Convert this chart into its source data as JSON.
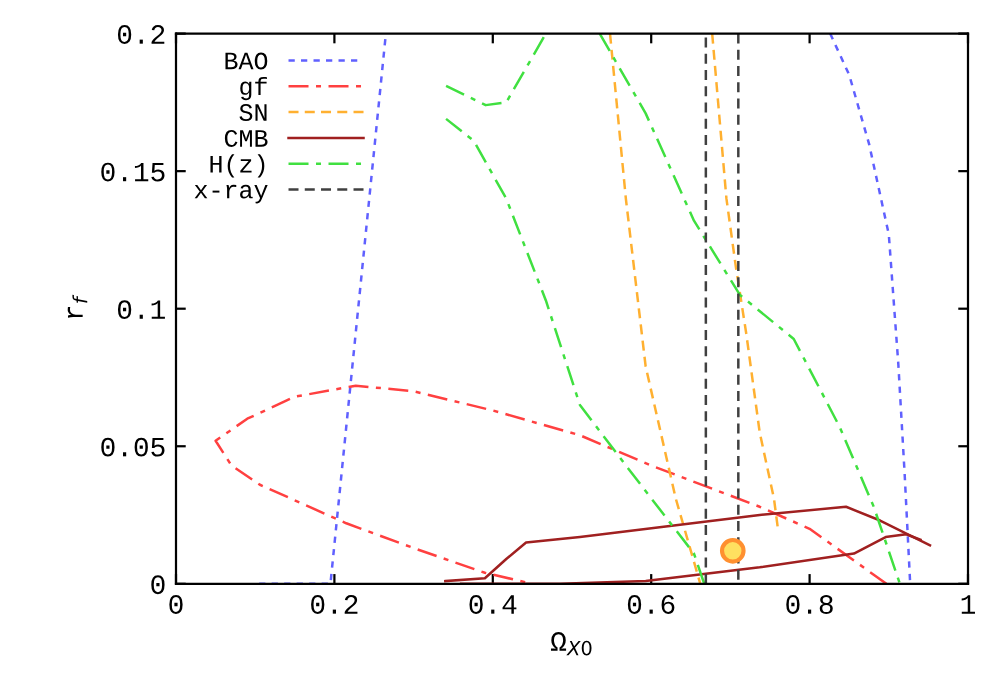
{
  "chart_data": {
    "type": "line",
    "xlabel": "Ω$_{X0}$",
    "ylabel": "r$_{f}$",
    "xlim": [
      0,
      1
    ],
    "ylim": [
      0,
      0.2
    ],
    "xticks": [
      0,
      0.2,
      0.4,
      0.6,
      0.8,
      1
    ],
    "yticks": [
      0,
      0.05,
      0.1,
      0.15,
      0.2
    ],
    "grid": false,
    "legend": "top left",
    "series": [
      {
        "name": "BAO",
        "color": "#6060ff",
        "line_style": "dotted",
        "x": [
          0.105,
          0.195,
          0.23,
          0.265
        ],
        "values": [
          0,
          0,
          0.1,
          0.2
        ]
      },
      {
        "color": "#6060ff",
        "line_style": "dotted",
        "x": [
          0.826,
          0.85,
          0.875,
          0.9,
          0.912,
          0.92,
          0.927
        ],
        "values": [
          0.2,
          0.185,
          0.16,
          0.127,
          0.08,
          0.04,
          0
        ]
      },
      {
        "name": "gf",
        "color": "#ff4040",
        "line_style": "dashdot",
        "x": [
          0.897,
          0.8,
          0.737,
          0.6,
          0.51,
          0.4,
          0.3,
          0.227,
          0.15,
          0.09,
          0.05,
          0.07,
          0.106,
          0.215,
          0.3,
          0.39,
          0.45
        ],
        "values": [
          0,
          0.02,
          0.028,
          0.043,
          0.054,
          0.063,
          0.07,
          0.072,
          0.068,
          0.06,
          0.052,
          0.043,
          0.036,
          0.022,
          0.013,
          0.004,
          0
        ]
      },
      {
        "name": "SN",
        "color": "#ffb030",
        "line_style": "dashed",
        "x": [
          0.548,
          0.568,
          0.593,
          0.631,
          0.662
        ],
        "values": [
          0.2,
          0.14,
          0.079,
          0.031,
          0
        ]
      },
      {
        "color": "#ffb030",
        "line_style": "dashed",
        "x": [
          0.677,
          0.695,
          0.707,
          0.72,
          0.737,
          0.755,
          0.76
        ],
        "values": [
          0.2,
          0.14,
          0.115,
          0.091,
          0.055,
          0.031,
          0.02
        ]
      },
      {
        "name": "CMB",
        "color": "#a02020",
        "line_style": "solid",
        "x": [
          0.34,
          0.39,
          0.417,
          0.442,
          0.51,
          0.737,
          0.846,
          0.889,
          0.952
        ],
        "values": [
          0.001,
          0.002,
          0.009,
          0.015,
          0.017,
          0.025,
          0.028,
          0.023,
          0.014
        ]
      },
      {
        "color": "#a02020",
        "line_style": "solid",
        "x": [
          0.36,
          0.485,
          0.593,
          0.737,
          0.856,
          0.896,
          0.922,
          0.94
        ],
        "values": [
          0,
          0,
          0.001,
          0.006,
          0.011,
          0.017,
          0.018,
          0.016
        ]
      },
      {
        "name": "H(z)",
        "color": "#40e040",
        "line_style": "dashdot",
        "x": [
          0.341,
          0.391,
          0.417,
          0.467
        ],
        "values": [
          0.181,
          0.174,
          0.175,
          0.2
        ]
      },
      {
        "color": "#40e040",
        "line_style": "dashdot",
        "x": [
          0.535,
          0.593,
          0.654,
          0.712,
          0.78,
          0.838,
          0.881,
          0.914
        ],
        "values": [
          0.2,
          0.171,
          0.132,
          0.105,
          0.089,
          0.057,
          0.028,
          0
        ]
      },
      {
        "color": "#40e040",
        "line_style": "dashdot",
        "x": [
          0.341,
          0.376,
          0.417,
          0.467,
          0.51,
          0.568,
          0.654,
          0.667
        ],
        "values": [
          0.169,
          0.161,
          0.14,
          0.103,
          0.065,
          0.043,
          0.011,
          0
        ]
      },
      {
        "name": "x-ray",
        "color": "#404040",
        "line_style": "dashed",
        "x": [
          0.669,
          0.669
        ],
        "values": [
          0,
          0.2
        ]
      },
      {
        "color": "#404040",
        "line_style": "dashed",
        "x": [
          0.71,
          0.71
        ],
        "values": [
          0.2,
          0
        ]
      },
      {
        "type": "scatter",
        "color": "#ffe060",
        "x": [
          0.703
        ],
        "values": [
          0.012
        ]
      }
    ]
  }
}
